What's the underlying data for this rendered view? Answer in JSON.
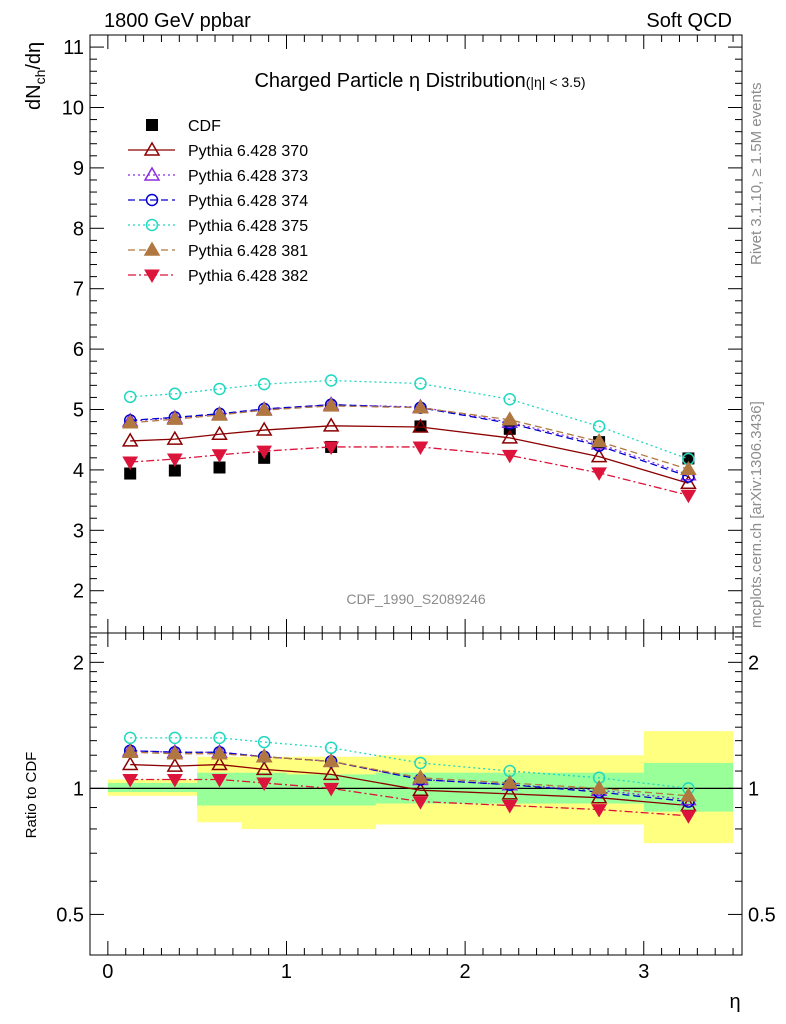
{
  "header": {
    "left": "1800 GeV ppbar",
    "right": "Soft QCD"
  },
  "side": {
    "rivet": "Rivet 3.1.10, ≥ 1.5M events",
    "mcplots": "mcplots.cern.ch [arXiv:1306.3436]"
  },
  "plot_title": {
    "main": "Charged Particle η Distribution",
    "sub": "(|η| < 3.5)"
  },
  "analysis_id": "CDF_1990_S2089246",
  "chart_data": [
    {
      "type": "scatter",
      "panel": "main",
      "ylabel": "dN_ch/dη",
      "xlim": [
        -0.1,
        3.55
      ],
      "ylim": [
        1.3,
        11.2
      ],
      "yticks": [
        2,
        3,
        4,
        5,
        6,
        7,
        8,
        9,
        10,
        11
      ],
      "x": [
        0.125,
        0.375,
        0.625,
        0.875,
        1.25,
        1.75,
        2.25,
        2.75,
        3.25
      ],
      "series": [
        {
          "name": "CDF",
          "marker": "square-filled",
          "color": "#000000",
          "line": "none",
          "values": [
            3.94,
            3.99,
            4.04,
            4.2,
            4.38,
            4.72,
            4.68,
            4.46,
            4.19
          ]
        },
        {
          "name": "Pythia 6.428 370",
          "marker": "triangle-up-open",
          "color": "#8b0000",
          "line": "solid",
          "values": [
            4.48,
            4.51,
            4.59,
            4.66,
            4.73,
            4.71,
            4.53,
            4.22,
            3.78
          ]
        },
        {
          "name": "Pythia 6.428 373",
          "marker": "triangle-up-open",
          "color": "#8a2be2",
          "line": "dotted",
          "values": [
            4.81,
            4.86,
            4.92,
            5.0,
            5.08,
            5.04,
            4.79,
            4.43,
            3.92
          ]
        },
        {
          "name": "Pythia 6.428 374",
          "marker": "circle-open",
          "color": "#0000cd",
          "line": "dashed",
          "values": [
            4.82,
            4.87,
            4.93,
            5.01,
            5.08,
            5.03,
            4.77,
            4.4,
            3.89
          ]
        },
        {
          "name": "Pythia 6.428 375",
          "marker": "circle-open",
          "color": "#20d8c0",
          "line": "dotted",
          "values": [
            5.21,
            5.26,
            5.34,
            5.42,
            5.48,
            5.43,
            5.17,
            4.72,
            4.18
          ]
        },
        {
          "name": "Pythia 6.428 381",
          "marker": "triangle-up-filled",
          "color": "#b07840",
          "line": "dashed",
          "values": [
            4.78,
            4.84,
            4.91,
            4.99,
            5.06,
            5.03,
            4.83,
            4.47,
            4.01
          ]
        },
        {
          "name": "Pythia 6.428 382",
          "marker": "triangle-down-filled",
          "color": "#dc143c",
          "line": "dashdot",
          "values": [
            4.13,
            4.18,
            4.25,
            4.31,
            4.38,
            4.38,
            4.24,
            3.95,
            3.58
          ]
        }
      ]
    },
    {
      "type": "scatter",
      "panel": "ratio",
      "ylabel": "Ratio to CDF",
      "xlabel": "η",
      "scale": "log",
      "ylim": [
        0.4,
        2.35
      ],
      "yticks": [
        0.5,
        1,
        2
      ],
      "xticks": [
        0,
        1,
        2,
        3
      ],
      "bin_edges": [
        0,
        0.5,
        1,
        1.5,
        2,
        2.5,
        3,
        3.5
      ],
      "band_1sigma": {
        "color": "#99ff99",
        "bins": [
          [
            0.0,
            0.5,
            0.98,
            1.03
          ],
          [
            0.5,
            1.0,
            0.91,
            1.09
          ],
          [
            1.0,
            1.5,
            0.91,
            1.08
          ],
          [
            1.5,
            2.0,
            0.92,
            1.09
          ],
          [
            2.0,
            2.5,
            0.92,
            1.09
          ],
          [
            2.5,
            3.0,
            0.92,
            1.09
          ],
          [
            3.0,
            3.5,
            0.88,
            1.15
          ]
        ]
      },
      "band_2sigma": {
        "color": "#ffff80",
        "bins": [
          [
            0.0,
            0.5,
            0.96,
            1.05
          ],
          [
            0.5,
            0.75,
            0.83,
            1.19
          ],
          [
            0.75,
            1.5,
            0.8,
            1.19
          ],
          [
            1.5,
            2.0,
            0.82,
            1.2
          ],
          [
            2.0,
            2.5,
            0.82,
            1.2
          ],
          [
            2.5,
            3.0,
            0.82,
            1.2
          ],
          [
            3.0,
            3.5,
            0.74,
            1.37
          ]
        ]
      },
      "x": [
        0.125,
        0.375,
        0.625,
        0.875,
        1.25,
        1.75,
        2.25,
        2.75,
        3.25
      ],
      "series": [
        {
          "name": "CDF",
          "color": "#000000",
          "values": [
            1,
            1,
            1,
            1,
            1,
            1,
            1,
            1,
            1
          ]
        },
        {
          "name": "Pythia 6.428 370",
          "marker": "triangle-up-open",
          "color": "#8b0000",
          "line": "solid",
          "values": [
            1.14,
            1.13,
            1.14,
            1.11,
            1.08,
            0.99,
            0.97,
            0.95,
            0.91
          ]
        },
        {
          "name": "Pythia 6.428 373",
          "marker": "triangle-up-open",
          "color": "#8a2be2",
          "line": "dotted",
          "values": [
            1.23,
            1.22,
            1.22,
            1.19,
            1.16,
            1.05,
            1.02,
            0.99,
            0.94
          ]
        },
        {
          "name": "Pythia 6.428 374",
          "marker": "circle-open",
          "color": "#0000cd",
          "line": "dashed",
          "values": [
            1.23,
            1.22,
            1.22,
            1.19,
            1.16,
            1.05,
            1.02,
            0.98,
            0.93
          ]
        },
        {
          "name": "Pythia 6.428 375",
          "marker": "circle-open",
          "color": "#20d8c0",
          "line": "dotted",
          "values": [
            1.32,
            1.32,
            1.32,
            1.29,
            1.25,
            1.15,
            1.1,
            1.06,
            1.0
          ]
        },
        {
          "name": "Pythia 6.428 381",
          "marker": "triangle-up-filled",
          "color": "#b07840",
          "line": "dashed",
          "values": [
            1.22,
            1.21,
            1.21,
            1.19,
            1.16,
            1.06,
            1.03,
            1.0,
            0.96
          ]
        },
        {
          "name": "Pythia 6.428 382",
          "marker": "triangle-down-filled",
          "color": "#dc143c",
          "line": "dashdot",
          "values": [
            1.05,
            1.05,
            1.05,
            1.03,
            1.0,
            0.93,
            0.91,
            0.89,
            0.86
          ]
        }
      ]
    }
  ]
}
